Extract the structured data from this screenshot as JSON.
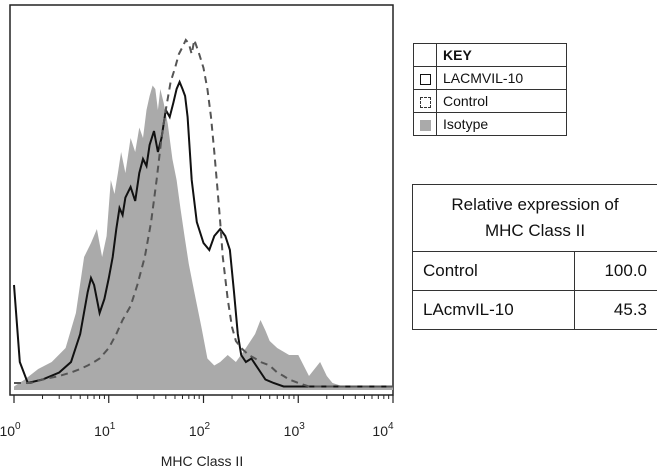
{
  "chart_data": {
    "type": "area",
    "xlabel": "MHC Class II",
    "x_scale": "log",
    "xlim": [
      1,
      10000
    ],
    "x_ticks": [
      {
        "base": "10",
        "exp": "0",
        "value": 1
      },
      {
        "base": "10",
        "exp": "1",
        "value": 10
      },
      {
        "base": "10",
        "exp": "2",
        "value": 100
      },
      {
        "base": "10",
        "exp": "3",
        "value": 1000
      },
      {
        "base": "10",
        "exp": "4",
        "value": 10000
      }
    ],
    "ylim": [
      0,
      100
    ],
    "grid": false,
    "series": [
      {
        "name": "Isotype",
        "style": "filled",
        "color": "#aaaaaa",
        "x": [
          1,
          1.3,
          1.8,
          2.5,
          3.5,
          4.5,
          5.5,
          6.5,
          7.5,
          8.5,
          9.5,
          10.5,
          11.5,
          12.5,
          13.5,
          15,
          17,
          19,
          21,
          23,
          25,
          27,
          29,
          31,
          33,
          35,
          38,
          42,
          47,
          52,
          57,
          63,
          70,
          80,
          95,
          110,
          130,
          150,
          180,
          220,
          280,
          350,
          400,
          450,
          500,
          600,
          800,
          1000,
          1300,
          1700,
          2000,
          2300,
          3000,
          4000,
          10000
        ],
        "values": [
          1,
          3,
          6,
          8,
          12,
          22,
          38,
          42,
          46,
          38,
          44,
          60,
          56,
          62,
          68,
          62,
          72,
          68,
          75,
          72,
          80,
          84,
          87,
          86,
          80,
          86,
          82,
          76,
          66,
          60,
          52,
          44,
          36,
          28,
          18,
          9,
          7,
          8,
          10,
          8,
          12,
          16,
          20,
          17,
          14,
          12,
          10,
          10,
          4,
          8,
          4,
          2,
          1,
          1,
          1
        ]
      },
      {
        "name": "LACMVIL-10",
        "style": "solid",
        "color": "#111111",
        "x": [
          1,
          1.15,
          1.4,
          2,
          3,
          4,
          5,
          6,
          6.5,
          7,
          8,
          9,
          10,
          11,
          12,
          13,
          14,
          15,
          17,
          19,
          21,
          23,
          25,
          27,
          30,
          33,
          36,
          40,
          44,
          48,
          52,
          56,
          60,
          64,
          68,
          75,
          85,
          100,
          115,
          130,
          150,
          170,
          190,
          210,
          230,
          250,
          280,
          320,
          380,
          450,
          550,
          700,
          900,
          1200,
          10000
        ],
        "values": [
          30,
          8,
          2,
          3,
          5,
          8,
          16,
          28,
          32,
          30,
          22,
          26,
          32,
          38,
          46,
          52,
          50,
          55,
          58,
          54,
          62,
          66,
          64,
          70,
          74,
          68,
          72,
          80,
          78,
          82,
          86,
          88,
          86,
          84,
          78,
          60,
          48,
          42,
          40,
          44,
          46,
          44,
          40,
          28,
          16,
          10,
          8,
          9,
          6,
          3,
          2,
          1,
          1,
          1,
          1
        ]
      },
      {
        "name": "Control",
        "style": "dashed",
        "color": "#555555",
        "x": [
          1,
          1.5,
          2,
          3,
          4,
          5,
          6,
          7,
          8,
          10,
          12,
          14,
          17,
          20,
          24,
          28,
          32,
          36,
          40,
          45,
          50,
          55,
          60,
          65,
          70,
          75,
          80,
          90,
          100,
          110,
          120,
          130,
          140,
          150,
          160,
          180,
          200,
          220,
          250,
          300,
          350,
          400,
          500,
          600,
          700,
          800,
          1000,
          1300,
          10000
        ],
        "values": [
          2,
          2,
          3,
          4,
          5,
          6,
          7,
          8,
          9,
          12,
          16,
          20,
          24,
          30,
          38,
          48,
          60,
          72,
          80,
          88,
          92,
          96,
          98,
          100,
          99,
          96,
          100,
          96,
          92,
          86,
          78,
          68,
          58,
          48,
          38,
          26,
          18,
          14,
          12,
          10,
          9,
          8,
          7,
          5,
          4,
          3,
          2,
          1,
          1
        ]
      }
    ]
  },
  "key": {
    "header": "KEY",
    "items": [
      {
        "label": "LACMVIL-10",
        "swatch": "solid"
      },
      {
        "label": "Control",
        "swatch": "dashed"
      },
      {
        "label": "Isotype",
        "swatch": "fill"
      }
    ]
  },
  "relative_table": {
    "header_line1": "Relative expression of",
    "header_line2": "MHC  Class II",
    "rows": [
      {
        "label": "Control",
        "value": "100.0"
      },
      {
        "label": "LAcmvIL-10",
        "value": "45.3"
      }
    ]
  }
}
